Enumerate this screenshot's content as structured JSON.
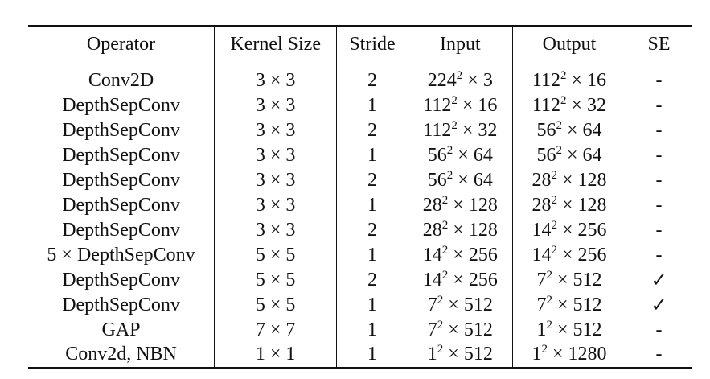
{
  "table": {
    "headers": [
      "Operator",
      "Kernel Size",
      "Stride",
      "Input",
      "Output",
      "SE"
    ],
    "rows": [
      {
        "operator": "Conv2D",
        "kernel": "3 × 3",
        "stride": "2",
        "input": {
          "base": "224",
          "exp": "2",
          "rest": " × 3"
        },
        "output": {
          "base": "112",
          "exp": "2",
          "rest": " × 16"
        },
        "se": "-"
      },
      {
        "operator": "DepthSepConv",
        "kernel": "3 × 3",
        "stride": "1",
        "input": {
          "base": "112",
          "exp": "2",
          "rest": " × 16"
        },
        "output": {
          "base": "112",
          "exp": "2",
          "rest": " × 32"
        },
        "se": "-"
      },
      {
        "operator": "DepthSepConv",
        "kernel": "3 × 3",
        "stride": "2",
        "input": {
          "base": "112",
          "exp": "2",
          "rest": " × 32"
        },
        "output": {
          "base": "56",
          "exp": "2",
          "rest": " × 64"
        },
        "se": "-"
      },
      {
        "operator": "DepthSepConv",
        "kernel": "3 × 3",
        "stride": "1",
        "input": {
          "base": "56",
          "exp": "2",
          "rest": " × 64"
        },
        "output": {
          "base": "56",
          "exp": "2",
          "rest": " × 64"
        },
        "se": "-"
      },
      {
        "operator": "DepthSepConv",
        "kernel": "3 × 3",
        "stride": "2",
        "input": {
          "base": "56",
          "exp": "2",
          "rest": " × 64"
        },
        "output": {
          "base": "28",
          "exp": "2",
          "rest": " × 128"
        },
        "se": "-"
      },
      {
        "operator": "DepthSepConv",
        "kernel": "3 × 3",
        "stride": "1",
        "input": {
          "base": "28",
          "exp": "2",
          "rest": " × 128"
        },
        "output": {
          "base": "28",
          "exp": "2",
          "rest": " × 128"
        },
        "se": "-"
      },
      {
        "operator": "DepthSepConv",
        "kernel": "3 × 3",
        "stride": "2",
        "input": {
          "base": "28",
          "exp": "2",
          "rest": " × 128"
        },
        "output": {
          "base": "14",
          "exp": "2",
          "rest": " × 256"
        },
        "se": "-"
      },
      {
        "operator": "5 × DepthSepConv",
        "kernel": "5 × 5",
        "stride": "1",
        "input": {
          "base": "14",
          "exp": "2",
          "rest": " × 256"
        },
        "output": {
          "base": "14",
          "exp": "2",
          "rest": " × 256"
        },
        "se": "-"
      },
      {
        "operator": "DepthSepConv",
        "kernel": "5 × 5",
        "stride": "2",
        "input": {
          "base": "14",
          "exp": "2",
          "rest": " × 256"
        },
        "output": {
          "base": "7",
          "exp": "2",
          "rest": " × 512"
        },
        "se": "✓"
      },
      {
        "operator": "DepthSepConv",
        "kernel": "5 × 5",
        "stride": "1",
        "input": {
          "base": "7",
          "exp": "2",
          "rest": " × 512"
        },
        "output": {
          "base": "7",
          "exp": "2",
          "rest": " × 512"
        },
        "se": "✓"
      },
      {
        "operator": "GAP",
        "kernel": "7 × 7",
        "stride": "1",
        "input": {
          "base": "7",
          "exp": "2",
          "rest": " × 512"
        },
        "output": {
          "base": "1",
          "exp": "2",
          "rest": " × 512"
        },
        "se": "-"
      },
      {
        "operator": "Conv2d, NBN",
        "kernel": "1 × 1",
        "stride": "1",
        "input": {
          "base": "1",
          "exp": "2",
          "rest": " × 512"
        },
        "output": {
          "base": "1",
          "exp": "2",
          "rest": " × 1280"
        },
        "se": "-"
      }
    ]
  }
}
